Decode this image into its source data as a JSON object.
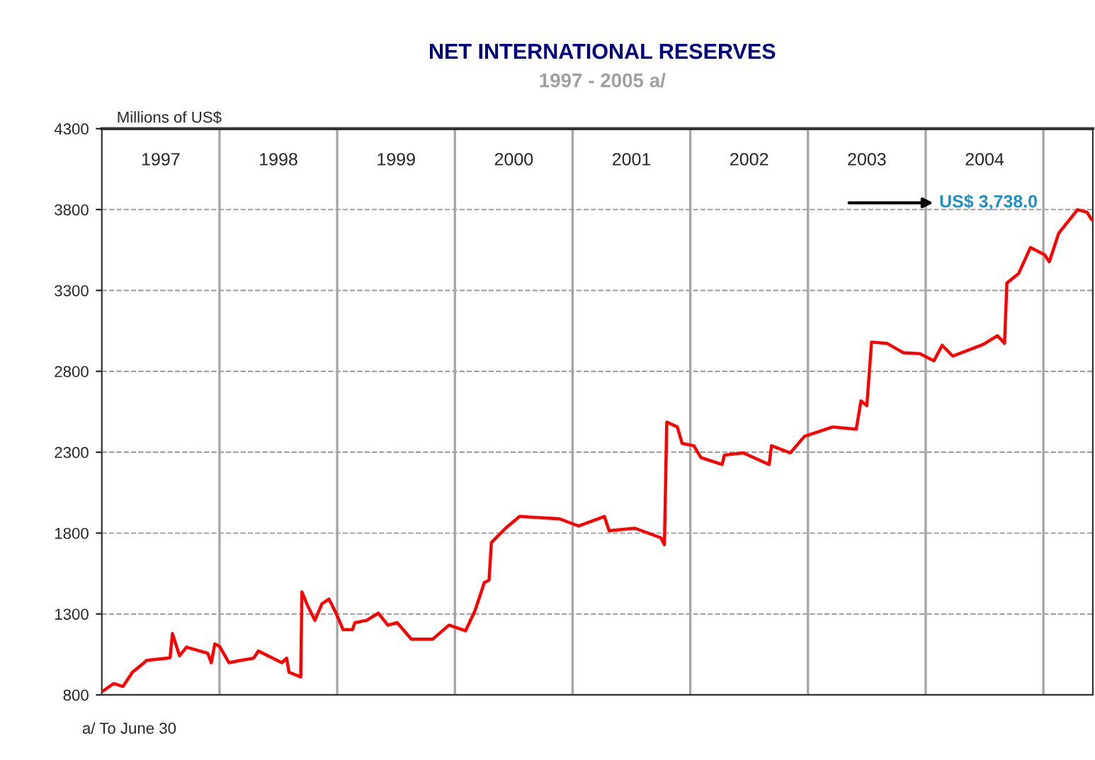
{
  "chart_data": {
    "type": "line",
    "title": "NET INTERNATIONAL RESERVES",
    "subtitle": "1997 - 2005 a/",
    "ylabel": "Millions of US$",
    "annotations": [
      "US$ 3,738.0",
      "a/ To June 30"
    ],
    "xlim": [
      1997,
      2005.42
    ],
    "xticks": [
      {
        "value": 1997.5,
        "label": "1997"
      },
      {
        "value": 1998.5,
        "label": "1998"
      },
      {
        "value": 1999.5,
        "label": "1999"
      },
      {
        "value": 2000.5,
        "label": "2000"
      },
      {
        "value": 2001.5,
        "label": "2001"
      },
      {
        "value": 2002.5,
        "label": "2002"
      },
      {
        "value": 2003.5,
        "label": "2003"
      },
      {
        "value": 2004.5,
        "label": "2004"
      }
    ],
    "ylim": [
      800,
      4300
    ],
    "yticks": [
      800,
      1300,
      1800,
      2300,
      2800,
      3300,
      3800,
      4300
    ],
    "grid": "y",
    "ref_lines": [
      {
        "axis": "x",
        "value": 1998,
        "color": "#a6a6a6"
      },
      {
        "axis": "x",
        "value": 1999,
        "color": "#a6a6a6"
      },
      {
        "axis": "x",
        "value": 2000,
        "color": "#a6a6a6"
      },
      {
        "axis": "x",
        "value": 2001,
        "color": "#a6a6a6"
      },
      {
        "axis": "x",
        "value": 2002,
        "color": "#a6a6a6"
      },
      {
        "axis": "x",
        "value": 2003,
        "color": "#a6a6a6"
      },
      {
        "axis": "x",
        "value": 2004,
        "color": "#a6a6a6"
      },
      {
        "axis": "x",
        "value": 2005,
        "color": "#a6a6a6"
      }
    ],
    "line_style": "solid",
    "marker": "none",
    "series": [
      {
        "color": "#ff0000",
        "x": [
          1997.01,
          1997.1,
          1997.18,
          1997.26,
          1997.36,
          1997.38,
          1997.56,
          1997.58,
          1997.6,
          1997.66,
          1997.72,
          1997.9,
          1997.93,
          1997.96,
          1998.0,
          1998.08,
          1998.18,
          1998.29,
          1998.33,
          1998.53,
          1998.57,
          1998.59,
          1998.69,
          1998.7,
          1998.75,
          1998.81,
          1998.87,
          1998.93,
          1998.99,
          1999.05,
          1999.13,
          1999.15,
          1999.25,
          1999.35,
          1999.43,
          1999.51,
          1999.63,
          1999.81,
          1999.95,
          2000.09,
          2000.17,
          2000.25,
          2000.29,
          2000.31,
          2000.43,
          2000.55,
          2000.89,
          2001.05,
          2001.27,
          2001.31,
          2001.53,
          2001.75,
          2001.78,
          2001.8,
          2001.89,
          2001.93,
          2002.03,
          2002.09,
          2002.27,
          2002.29,
          2002.45,
          2002.67,
          2002.69,
          2002.85,
          2002.97,
          2003.21,
          2003.41,
          2003.45,
          2003.5,
          2003.54,
          2003.67,
          2003.81,
          2003.95,
          2004.07,
          2004.14,
          2004.23,
          2004.49,
          2004.61,
          2004.67,
          2004.69,
          2004.79,
          2004.89,
          2005.01,
          2005.05,
          2005.13,
          2005.29,
          2005.37,
          2005.41
        ],
        "values": [
          824,
          870,
          852,
          940,
          999,
          1013,
          1027,
          1030,
          1179,
          1042,
          1095,
          1057,
          999,
          1115,
          1100,
          999,
          1013,
          1027,
          1071,
          999,
          1027,
          940,
          911,
          1436,
          1349,
          1261,
          1363,
          1392,
          1305,
          1203,
          1203,
          1246,
          1261,
          1305,
          1231,
          1246,
          1144,
          1144,
          1231,
          1196,
          1319,
          1494,
          1509,
          1742,
          1830,
          1903,
          1888,
          1844,
          1903,
          1815,
          1830,
          1771,
          1728,
          2486,
          2456,
          2355,
          2340,
          2267,
          2224,
          2282,
          2296,
          2224,
          2340,
          2296,
          2398,
          2456,
          2442,
          2617,
          2588,
          2981,
          2973,
          2915,
          2909,
          2865,
          2961,
          2894,
          2967,
          3020,
          2973,
          3346,
          3405,
          3565,
          3521,
          3477,
          3653,
          3799,
          3784,
          3738
        ]
      }
    ]
  }
}
